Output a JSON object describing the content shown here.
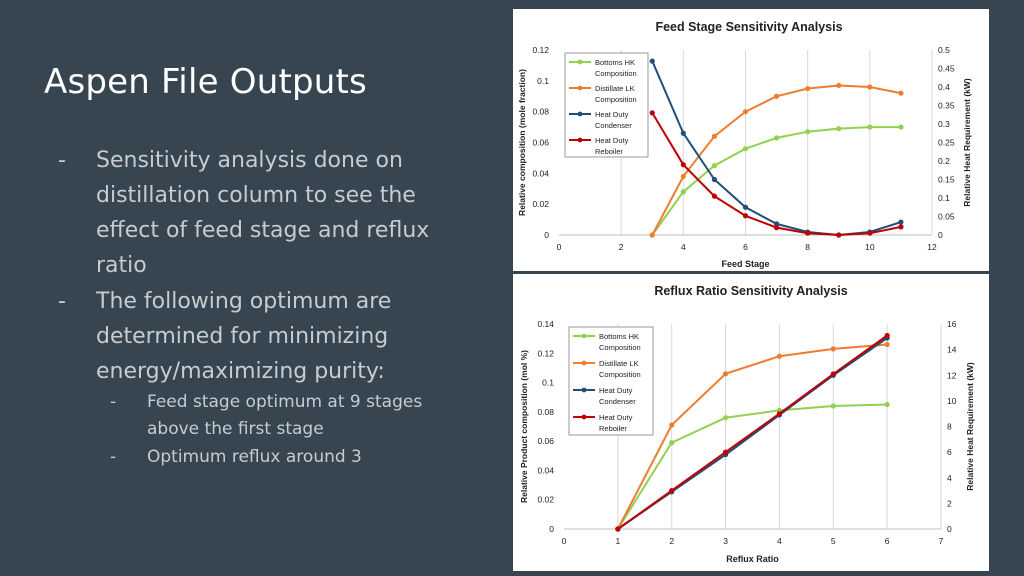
{
  "slide": {
    "title": "Aspen File Outputs",
    "bullets": [
      "Sensitivity analysis done on distillation column to see the effect of feed stage and reflux ratio",
      "The following optimum are determined for minimizing energy/maximizing purity:"
    ],
    "sub_bullets": [
      "Feed stage optimum at 9 stages above the first stage",
      "Optimum reflux around 3"
    ],
    "bullet_marker": "-"
  },
  "chart_data": [
    {
      "type": "line",
      "title": "Feed Stage Sensitivity Analysis",
      "xlabel": "Feed Stage",
      "ylabel": "Relative composition (mole fraction)",
      "y2label": "Relative Heat Requirement (kW)",
      "xlim": [
        0,
        12
      ],
      "ylim": [
        0,
        0.12
      ],
      "y2lim": [
        0,
        0.5
      ],
      "x_ticks": [
        "0",
        "2",
        "4",
        "6",
        "8",
        "10",
        "12"
      ],
      "y_ticks": [
        "0",
        "0.02",
        "0.04",
        "0.06",
        "0.08",
        "0.1",
        "0.12"
      ],
      "y2_ticks": [
        "0",
        "0.05",
        "0.1",
        "0.15",
        "0.2",
        "0.25",
        "0.3",
        "0.35",
        "0.4",
        "0.45",
        "0.5"
      ],
      "grid": "vertical",
      "legend_position": "top-left",
      "x": [
        3,
        4,
        5,
        6,
        7,
        8,
        9,
        10,
        11
      ],
      "series": [
        {
          "name": "Bottoms HK Composition",
          "axis": "left",
          "color": "#92d050",
          "values": [
            0,
            0.028,
            0.045,
            0.056,
            0.063,
            0.067,
            0.069,
            0.07,
            0.07
          ]
        },
        {
          "name": "Distillate LK Composition",
          "axis": "left",
          "color": "#ed7d31",
          "values": [
            0,
            0.038,
            0.064,
            0.08,
            0.09,
            0.095,
            0.097,
            0.096,
            0.092
          ]
        },
        {
          "name": "Heat Duty Condenser",
          "axis": "right",
          "color": "#1f4e79",
          "values": [
            0.47,
            0.275,
            0.15,
            0.075,
            0.03,
            0.008,
            0.0,
            0.008,
            0.035
          ]
        },
        {
          "name": "Heat Duty Reboiler",
          "axis": "right",
          "color": "#c00000",
          "values": [
            0.33,
            0.19,
            0.105,
            0.052,
            0.02,
            0.005,
            0.0,
            0.005,
            0.022
          ]
        }
      ]
    },
    {
      "type": "line",
      "title": "Reflux Ratio Sensitivity Analysis",
      "xlabel": "Reflux Ratio",
      "ylabel": "Relative Product composition (mol %)",
      "y2label": "Relative Heat Requirement (kW)",
      "xlim": [
        0,
        7
      ],
      "ylim": [
        0,
        0.14
      ],
      "y2lim": [
        0,
        16
      ],
      "x_ticks": [
        "0",
        "1",
        "2",
        "3",
        "4",
        "5",
        "6",
        "7"
      ],
      "y_ticks": [
        "0",
        "0.02",
        "0.04",
        "0.06",
        "0.08",
        "0.1",
        "0.12",
        "0.14"
      ],
      "y2_ticks": [
        "0",
        "2",
        "4",
        "6",
        "8",
        "10",
        "12",
        "14",
        "16"
      ],
      "grid": "vertical",
      "legend_position": "top-left",
      "x": [
        1,
        2,
        3,
        4,
        5,
        6
      ],
      "series": [
        {
          "name": "Bottoms HK Composition",
          "axis": "left",
          "color": "#92d050",
          "values": [
            0,
            0.059,
            0.076,
            0.081,
            0.084,
            0.085
          ]
        },
        {
          "name": "Distillate LK Composition",
          "axis": "left",
          "color": "#ed7d31",
          "values": [
            0,
            0.071,
            0.106,
            0.118,
            0.123,
            0.126
          ]
        },
        {
          "name": "Heat Duty Condenser",
          "axis": "right",
          "color": "#1f4e79",
          "values": [
            0,
            2.9,
            5.8,
            8.9,
            12.0,
            14.9
          ]
        },
        {
          "name": "Heat Duty Reboiler",
          "axis": "right",
          "color": "#c00000",
          "values": [
            0,
            3.0,
            6.0,
            9.0,
            12.1,
            15.1
          ]
        }
      ]
    }
  ]
}
